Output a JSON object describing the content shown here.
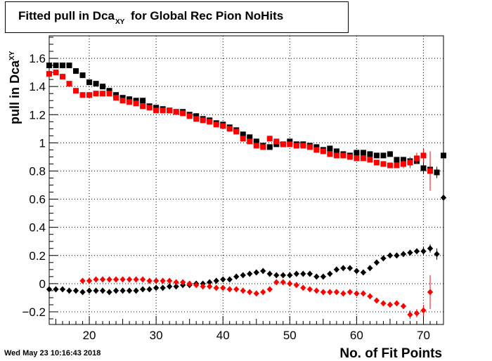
{
  "title": {
    "main": "Fitted pull in Dca",
    "sub": "XY",
    "rest": " for Global Rec Pion NoHits"
  },
  "timestamp": "Wed May 23 10:16:43 2018",
  "chart_data": {
    "type": "scatter",
    "xlabel": "No. of Fit Points",
    "ylabel": "pull in Dca",
    "ylabel_sub": "XY",
    "xlim": [
      14,
      73
    ],
    "ylim": [
      -0.29,
      1.76
    ],
    "x_ticks": [
      20,
      30,
      40,
      50,
      60,
      70
    ],
    "y_ticks": [
      -0.2,
      0,
      0.2,
      0.4,
      0.6,
      0.8,
      1,
      1.2,
      1.4,
      1.6
    ],
    "y_tick_labels": [
      "−0.2",
      "0",
      "0.2",
      "0.4",
      "0.6",
      "0.8",
      "1",
      "1.2",
      "1.4",
      "1.6"
    ],
    "grid": true,
    "series": [
      {
        "marker": "square",
        "color": "#000000",
        "x": [
          14,
          15,
          16,
          17,
          18,
          19,
          20,
          21,
          22,
          23,
          24,
          25,
          26,
          27,
          28,
          29,
          30,
          31,
          32,
          33,
          34,
          35,
          36,
          37,
          38,
          39,
          40,
          41,
          42,
          43,
          44,
          45,
          46,
          47,
          48,
          49,
          50,
          51,
          52,
          53,
          54,
          55,
          56,
          57,
          58,
          59,
          60,
          61,
          62,
          63,
          64,
          65,
          66,
          67,
          68,
          69,
          70,
          71,
          72,
          73
        ],
        "y": [
          1.55,
          1.55,
          1.55,
          1.55,
          1.51,
          1.48,
          1.43,
          1.42,
          1.4,
          1.37,
          1.34,
          1.32,
          1.31,
          1.3,
          1.3,
          1.26,
          1.25,
          1.24,
          1.23,
          1.22,
          1.22,
          1.2,
          1.19,
          1.17,
          1.16,
          1.14,
          1.13,
          1.11,
          1.09,
          1.06,
          1.04,
          1.01,
          0.98,
          0.97,
          0.99,
          0.99,
          1.01,
          0.99,
          0.99,
          0.98,
          0.97,
          0.95,
          0.96,
          0.94,
          0.92,
          0.91,
          0.93,
          0.93,
          0.92,
          0.91,
          0.91,
          0.92,
          0.88,
          0.88,
          0.87,
          0.87,
          0.82,
          0.81,
          0.79,
          0.91
        ],
        "err": [
          0,
          0,
          0,
          0,
          0,
          0,
          0,
          0,
          0,
          0,
          0,
          0,
          0,
          0,
          0,
          0,
          0,
          0,
          0,
          0,
          0,
          0,
          0,
          0,
          0,
          0,
          0,
          0,
          0,
          0,
          0,
          0,
          0,
          0,
          0,
          0,
          0,
          0,
          0,
          0,
          0,
          0,
          0,
          0,
          0,
          0,
          0,
          0,
          0,
          0,
          0,
          0,
          0,
          0,
          0,
          0,
          0.04,
          0.05,
          0.04,
          0.18
        ]
      },
      {
        "marker": "square",
        "color": "#ff0000",
        "x": [
          14,
          15,
          16,
          17,
          18,
          19,
          20,
          21,
          22,
          23,
          24,
          25,
          26,
          27,
          28,
          29,
          30,
          31,
          32,
          33,
          34,
          35,
          36,
          37,
          38,
          39,
          40,
          41,
          42,
          43,
          44,
          45,
          46,
          47,
          48,
          49,
          50,
          51,
          52,
          53,
          54,
          55,
          56,
          57,
          58,
          59,
          60,
          61,
          62,
          63,
          64,
          65,
          66,
          67,
          68,
          69,
          70,
          71
        ],
        "y": [
          1.49,
          1.5,
          1.47,
          1.42,
          1.37,
          1.34,
          1.34,
          1.35,
          1.35,
          1.35,
          1.32,
          1.3,
          1.29,
          1.28,
          1.26,
          1.25,
          1.23,
          1.23,
          1.23,
          1.22,
          1.21,
          1.19,
          1.17,
          1.16,
          1.15,
          1.13,
          1.12,
          1.1,
          1.08,
          1.03,
          1.01,
          0.98,
          0.97,
          1.03,
          1.01,
          0.99,
          0.99,
          0.98,
          0.98,
          0.97,
          0.95,
          0.94,
          0.92,
          0.91,
          0.91,
          0.9,
          0.89,
          0.89,
          0.88,
          0.86,
          0.85,
          0.84,
          0.84,
          0.85,
          0.86,
          0.89,
          0.91,
          0.8
        ],
        "err": [
          0,
          0,
          0,
          0,
          0,
          0,
          0,
          0,
          0,
          0,
          0,
          0,
          0,
          0,
          0,
          0,
          0,
          0,
          0,
          0,
          0,
          0,
          0,
          0,
          0,
          0,
          0,
          0,
          0,
          0,
          0,
          0,
          0,
          0,
          0,
          0,
          0,
          0,
          0,
          0,
          0,
          0,
          0,
          0,
          0,
          0,
          0,
          0,
          0,
          0,
          0,
          0,
          0,
          0.03,
          0.04,
          0.04,
          0.05,
          0.14
        ]
      },
      {
        "marker": "diamond",
        "color": "#000000",
        "x": [
          14,
          15,
          16,
          17,
          18,
          19,
          20,
          21,
          22,
          23,
          24,
          25,
          26,
          27,
          28,
          29,
          30,
          31,
          32,
          33,
          34,
          35,
          36,
          37,
          38,
          39,
          40,
          41,
          42,
          43,
          44,
          45,
          46,
          47,
          48,
          49,
          50,
          51,
          52,
          53,
          54,
          55,
          56,
          57,
          58,
          59,
          60,
          61,
          62,
          63,
          64,
          65,
          66,
          67,
          68,
          69,
          70,
          71,
          72,
          73
        ],
        "y": [
          -0.04,
          -0.04,
          -0.04,
          -0.05,
          -0.05,
          -0.06,
          -0.05,
          -0.05,
          -0.05,
          -0.06,
          -0.05,
          -0.05,
          -0.05,
          -0.05,
          -0.04,
          -0.04,
          -0.03,
          -0.03,
          -0.02,
          -0.02,
          -0.01,
          -0.01,
          0,
          0,
          0.01,
          0.02,
          0.03,
          0.03,
          0.05,
          0.06,
          0.07,
          0.08,
          0.09,
          0.07,
          0.06,
          0.06,
          0.06,
          0.07,
          0.07,
          0.07,
          0.05,
          0.05,
          0.07,
          0.1,
          0.11,
          0.11,
          0.09,
          0.08,
          0.11,
          0.15,
          0.18,
          0.2,
          0.2,
          0.21,
          0.22,
          0.23,
          0.23,
          0.25,
          0.21,
          0.61
        ],
        "err": [
          0,
          0,
          0,
          0,
          0,
          0,
          0,
          0,
          0,
          0,
          0,
          0,
          0,
          0,
          0,
          0,
          0,
          0,
          0,
          0,
          0,
          0,
          0,
          0,
          0,
          0,
          0,
          0,
          0,
          0,
          0,
          0,
          0,
          0,
          0,
          0,
          0,
          0,
          0,
          0,
          0,
          0,
          0,
          0,
          0,
          0,
          0,
          0,
          0,
          0,
          0,
          0,
          0,
          0,
          0.02,
          0.02,
          0.03,
          0.03,
          0.04,
          0.16
        ]
      },
      {
        "marker": "diamond",
        "color": "#ff0000",
        "x": [
          19,
          20,
          21,
          22,
          23,
          24,
          25,
          26,
          27,
          28,
          29,
          30,
          31,
          32,
          33,
          34,
          35,
          36,
          37,
          38,
          39,
          40,
          41,
          42,
          43,
          44,
          45,
          46,
          47,
          48,
          49,
          50,
          51,
          52,
          53,
          54,
          55,
          56,
          57,
          58,
          59,
          60,
          61,
          62,
          63,
          64,
          65,
          66,
          67,
          68,
          69,
          70,
          71
        ],
        "y": [
          0.02,
          0.02,
          0.03,
          0.03,
          0.03,
          0.03,
          0.03,
          0.03,
          0.03,
          0.03,
          0.02,
          0.02,
          0.02,
          0.02,
          0.01,
          0.01,
          0,
          -0.01,
          -0.02,
          -0.02,
          -0.03,
          -0.03,
          -0.04,
          -0.04,
          -0.05,
          -0.06,
          -0.07,
          -0.06,
          -0.04,
          0.01,
          0.01,
          0,
          -0.01,
          -0.03,
          -0.04,
          -0.05,
          -0.06,
          -0.06,
          -0.06,
          -0.07,
          -0.06,
          -0.07,
          -0.07,
          -0.09,
          -0.12,
          -0.14,
          -0.15,
          -0.14,
          -0.16,
          -0.22,
          -0.21,
          -0.19,
          -0.06
        ],
        "err": [
          0,
          0,
          0,
          0,
          0,
          0,
          0,
          0,
          0,
          0,
          0,
          0,
          0,
          0,
          0,
          0,
          0,
          0,
          0,
          0,
          0,
          0,
          0,
          0,
          0,
          0,
          0,
          0,
          0,
          0,
          0,
          0,
          0,
          0,
          0,
          0,
          0,
          0,
          0,
          0,
          0,
          0,
          0,
          0,
          0,
          0,
          0,
          0,
          0,
          0.03,
          0.03,
          0.04,
          0.12
        ]
      }
    ]
  }
}
